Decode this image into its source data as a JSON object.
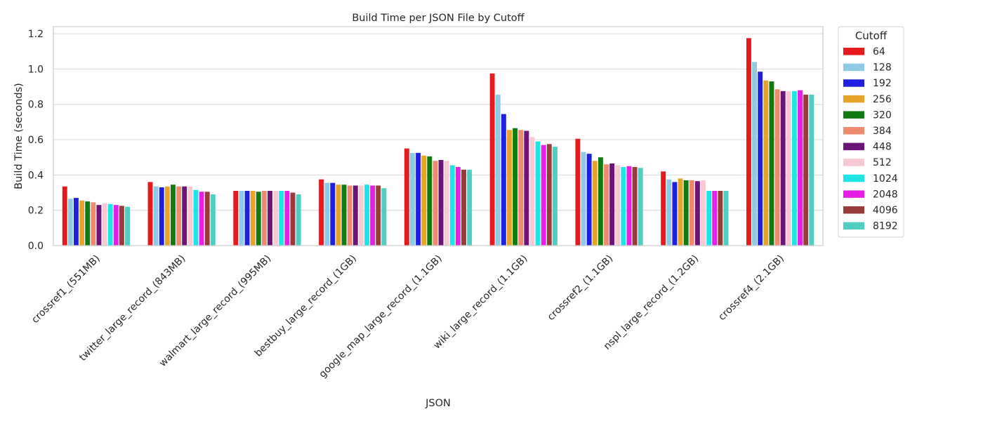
{
  "chart_data": {
    "type": "bar",
    "title": "Build Time per JSON File by Cutoff",
    "xlabel": "JSON",
    "ylabel": "Build Time (seconds)",
    "ylim": [
      0,
      1.24
    ],
    "yticks": [
      "0.0",
      "0.2",
      "0.4",
      "0.6",
      "0.8",
      "1.0",
      "1.2"
    ],
    "grid": true,
    "legend": {
      "title": "Cutoff",
      "placement": "outside-right"
    },
    "categories": [
      "crossref1_(551MB)",
      "twitter_large_record_(843MB)",
      "walmart_large_record_(995MB)",
      "bestbuy_large_record_(1GB)",
      "google_map_large_record_(1.1GB)",
      "wiki_large_record_(1.1GB)",
      "crossref2_(1.1GB)",
      "nspl_large_record_(1.2GB)",
      "crossref4_(2.1GB)"
    ],
    "series": [
      {
        "name": "64",
        "color": "#e41a1c",
        "values": [
          0.335,
          0.36,
          0.31,
          0.375,
          0.55,
          0.975,
          0.605,
          0.42,
          1.175
        ]
      },
      {
        "name": "128",
        "color": "#8ecae6",
        "values": [
          0.265,
          0.335,
          0.31,
          0.355,
          0.525,
          0.855,
          0.53,
          0.375,
          1.04
        ]
      },
      {
        "name": "192",
        "color": "#1f1fe0",
        "values": [
          0.27,
          0.33,
          0.31,
          0.355,
          0.525,
          0.745,
          0.52,
          0.36,
          0.985
        ]
      },
      {
        "name": "256",
        "color": "#e8a32a",
        "values": [
          0.255,
          0.335,
          0.31,
          0.345,
          0.51,
          0.655,
          0.48,
          0.38,
          0.935
        ]
      },
      {
        "name": "320",
        "color": "#127a12",
        "values": [
          0.25,
          0.345,
          0.305,
          0.345,
          0.505,
          0.665,
          0.5,
          0.37,
          0.93
        ]
      },
      {
        "name": "384",
        "color": "#ef8a6e",
        "values": [
          0.245,
          0.335,
          0.31,
          0.34,
          0.48,
          0.655,
          0.46,
          0.37,
          0.885
        ]
      },
      {
        "name": "448",
        "color": "#6d1478",
        "values": [
          0.23,
          0.335,
          0.31,
          0.34,
          0.485,
          0.65,
          0.465,
          0.365,
          0.875
        ]
      },
      {
        "name": "512",
        "color": "#f8c8d4",
        "values": [
          0.24,
          0.335,
          0.31,
          0.34,
          0.48,
          0.615,
          0.455,
          0.37,
          0.875
        ]
      },
      {
        "name": "1024",
        "color": "#1ee5e5",
        "values": [
          0.235,
          0.315,
          0.31,
          0.345,
          0.455,
          0.59,
          0.445,
          0.31,
          0.875
        ]
      },
      {
        "name": "2048",
        "color": "#e61ee6",
        "values": [
          0.23,
          0.305,
          0.31,
          0.34,
          0.445,
          0.57,
          0.45,
          0.31,
          0.88
        ]
      },
      {
        "name": "4096",
        "color": "#9a3b3b",
        "values": [
          0.225,
          0.305,
          0.3,
          0.34,
          0.43,
          0.575,
          0.445,
          0.31,
          0.855
        ]
      },
      {
        "name": "8192",
        "color": "#4ecfc1",
        "values": [
          0.22,
          0.29,
          0.29,
          0.325,
          0.43,
          0.56,
          0.44,
          0.31,
          0.855
        ]
      }
    ]
  }
}
